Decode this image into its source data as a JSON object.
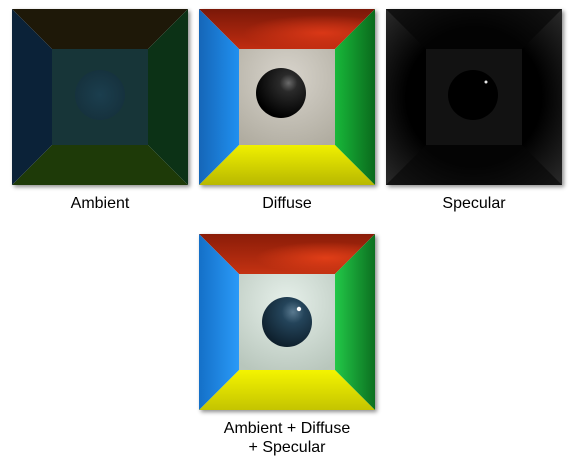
{
  "panels": {
    "ambient": {
      "label": "Ambient"
    },
    "diffuse": {
      "label": "Diffuse"
    },
    "specular": {
      "label": "Specular"
    },
    "combined": {
      "label_line1": "Ambient + Diffuse",
      "label_line2": "+ Specular"
    }
  },
  "colors": {
    "left_wall": "#1a7fd8",
    "right_wall": "#10a030",
    "ceiling": "#c02a10",
    "floor": "#e8e800",
    "back_wall": "#c8c4b8",
    "sphere": "#0a0a0a"
  }
}
